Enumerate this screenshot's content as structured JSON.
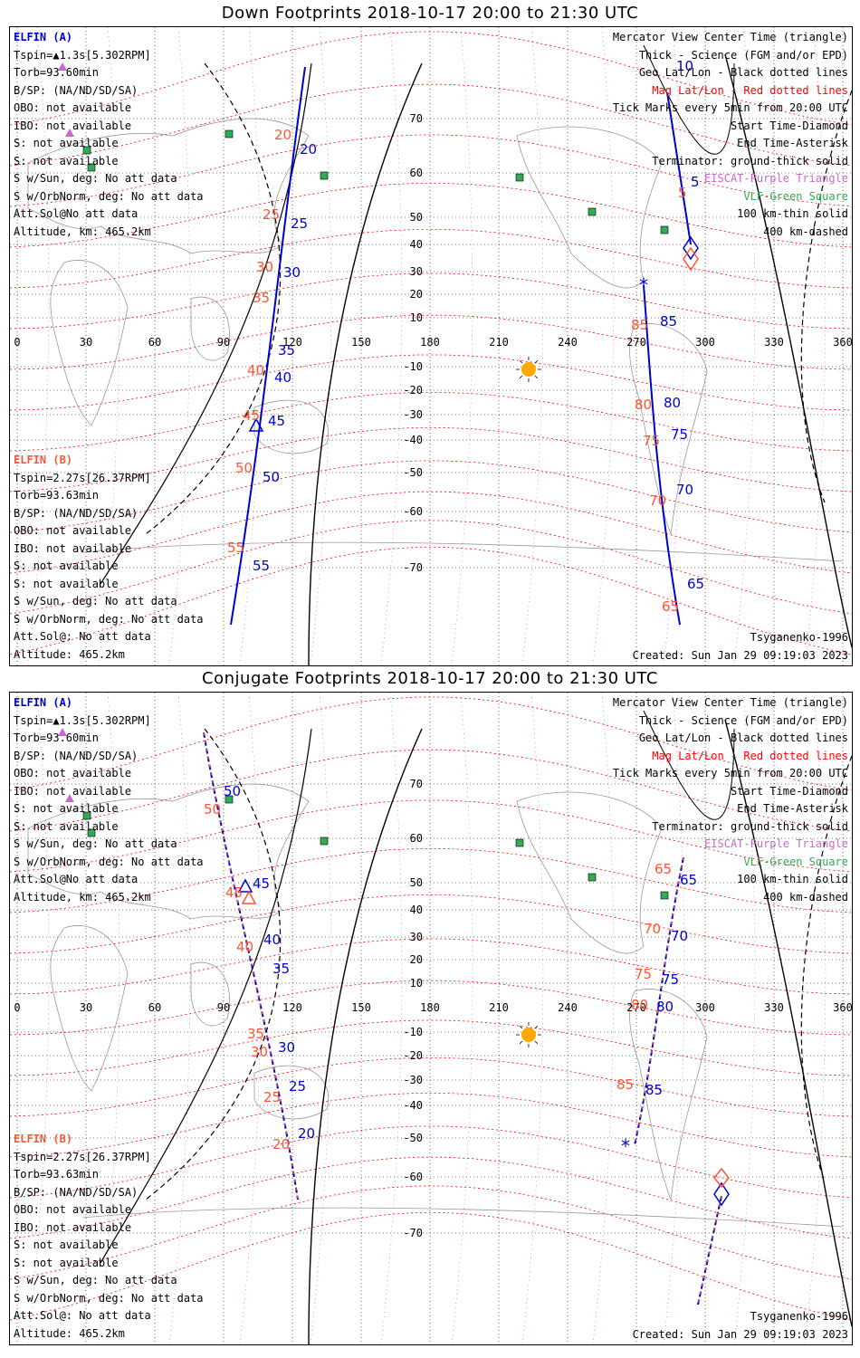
{
  "panels": [
    {
      "title": "Down Footprints 2018-10-17 20:00 to 21:30 UTC",
      "left_a": [
        {
          "text": "ELFIN (A)",
          "color": "blue"
        },
        {
          "text": "Tspin=▲1.3s[5.302RPM]",
          "color": ""
        },
        {
          "text": "Torb=93.60min",
          "color": ""
        },
        {
          "text": "B/SP: (NA/ND/SD/SA)",
          "color": ""
        },
        {
          "text": "OBO: not available",
          "color": ""
        },
        {
          "text": "IBO: not available",
          "color": ""
        },
        {
          "text": "S: not available",
          "color": ""
        },
        {
          "text": "S: not available",
          "color": ""
        },
        {
          "text": "S w/Sun, deg: No att data",
          "color": ""
        },
        {
          "text": "S w/OrbNorm, deg: No att data",
          "color": ""
        },
        {
          "text": "Att.Sol@No att data",
          "color": ""
        },
        {
          "text": "Altitude, km: 465.2km",
          "color": ""
        }
      ],
      "left_b": [
        {
          "text": "ELFIN (B)",
          "color": "orange"
        },
        {
          "text": "Tspin=2.27s[26.37RPM]",
          "color": ""
        },
        {
          "text": "Torb=93.63min",
          "color": ""
        },
        {
          "text": "B/SP: (NA/ND/SD/SA)",
          "color": ""
        },
        {
          "text": "OBO: not available",
          "color": ""
        },
        {
          "text": "IBO: not available",
          "color": ""
        },
        {
          "text": "S: not available",
          "color": ""
        },
        {
          "text": "S: not available",
          "color": ""
        },
        {
          "text": "S w/Sun, deg: No att data",
          "color": ""
        },
        {
          "text": "S w/OrbNorm, deg: No att data",
          "color": ""
        },
        {
          "text": "Att.Sol@: No att data",
          "color": ""
        },
        {
          "text": "Altitude: 465.2km",
          "color": ""
        }
      ],
      "legend": [
        {
          "text": "Mercator View Center Time (triangle)",
          "color": ""
        },
        {
          "text": "Thick - Science (FGM and/or EPD)",
          "color": ""
        },
        {
          "text": "Geo Lat/Lon - Black dotted lines",
          "color": ""
        },
        {
          "text": "Mag Lat/Lon - Red dotted lines",
          "color": "red"
        },
        {
          "text": "Tick Marks every 5min from 20:00 UTC",
          "color": ""
        },
        {
          "text": "Start Time-Diamond",
          "color": ""
        },
        {
          "text": "End Time-Asterisk",
          "color": ""
        },
        {
          "text": "Terminator: ground-thick solid",
          "color": ""
        },
        {
          "text": "EISCAT-Purple Triangle",
          "color": "purple"
        },
        {
          "text": "VLF-Green Square",
          "color": "green"
        },
        {
          "text": "100 km-thin solid",
          "color": ""
        },
        {
          "text": "400 km-dashed",
          "color": ""
        }
      ],
      "footer_left": "",
      "footer_right": [
        "Tsyganenko-1996",
        "Created: Sun Jan 29 09:19:03 2023"
      ],
      "lon_ticks": [
        "0",
        "30",
        "60",
        "90",
        "120",
        "150",
        "180",
        "210",
        "240",
        "270",
        "300",
        "330",
        "360"
      ],
      "lat_ticks": [
        "70",
        "60",
        "50",
        "40",
        "30",
        "20",
        "10",
        "-10",
        "-20",
        "-30",
        "-40",
        "-50",
        "-60",
        "-70"
      ],
      "track_labels_west_a": [
        "20",
        "25",
        "30",
        "35",
        "40",
        "45",
        "50",
        "55"
      ],
      "track_labels_west_b": [
        "20",
        "25",
        "30",
        "35",
        "40",
        "45",
        "50",
        "55"
      ],
      "track_labels_east_a": [
        "10",
        "5",
        "85",
        "80",
        "75",
        "70",
        "65"
      ],
      "track_labels_east_b": [
        "5",
        "85",
        "80",
        "75",
        "70",
        "65"
      ]
    },
    {
      "title": "Conjugate Footprints 2018-10-17 20:00 to 21:30 UTC",
      "left_a": [
        {
          "text": "ELFIN (A)",
          "color": "blue"
        },
        {
          "text": "Tspin=▲1.3s[5.302RPM]",
          "color": ""
        },
        {
          "text": "Torb=93.60min",
          "color": ""
        },
        {
          "text": "B/SP: (NA/ND/SD/SA)",
          "color": ""
        },
        {
          "text": "OBO: not available",
          "color": ""
        },
        {
          "text": "IBO: not available",
          "color": ""
        },
        {
          "text": "S: not available",
          "color": ""
        },
        {
          "text": "S: not available",
          "color": ""
        },
        {
          "text": "S w/Sun, deg: No att data",
          "color": ""
        },
        {
          "text": "S w/OrbNorm, deg: No att data",
          "color": ""
        },
        {
          "text": "Att.Sol@No att data",
          "color": ""
        },
        {
          "text": "Altitude, km: 465.2km",
          "color": ""
        }
      ],
      "left_b": [
        {
          "text": "ELFIN (B)",
          "color": "orange"
        },
        {
          "text": "Tspin=2.27s[26.37RPM]",
          "color": ""
        },
        {
          "text": "Torb=93.63min",
          "color": ""
        },
        {
          "text": "B/SP: (NA/ND/SD/SA)",
          "color": ""
        },
        {
          "text": "OBO: not available",
          "color": ""
        },
        {
          "text": "IBO: not available",
          "color": ""
        },
        {
          "text": "S: not available",
          "color": ""
        },
        {
          "text": "S: not available",
          "color": ""
        },
        {
          "text": "S w/Sun, deg: No att data",
          "color": ""
        },
        {
          "text": "S w/OrbNorm, deg: No att data",
          "color": ""
        },
        {
          "text": "Att.Sol@: No att data",
          "color": ""
        },
        {
          "text": "Altitude: 465.2km",
          "color": ""
        }
      ],
      "legend": [
        {
          "text": "Mercator View Center Time (triangle)",
          "color": ""
        },
        {
          "text": "Thick - Science (FGM and/or EPD)",
          "color": ""
        },
        {
          "text": "Geo Lat/Lon - Black dotted lines",
          "color": ""
        },
        {
          "text": "Mag Lat/Lon - Red dotted lines",
          "color": "red"
        },
        {
          "text": "Tick Marks every 5min from 20:00 UTC",
          "color": ""
        },
        {
          "text": "Start Time-Diamond",
          "color": ""
        },
        {
          "text": "End Time-Asterisk",
          "color": ""
        },
        {
          "text": "Terminator: ground-thick solid",
          "color": ""
        },
        {
          "text": "EISCAT-Purple Triangle",
          "color": "purple"
        },
        {
          "text": "VLF-Green Square",
          "color": "green"
        },
        {
          "text": "100 km-thin solid",
          "color": ""
        },
        {
          "text": "400 km-dashed",
          "color": ""
        }
      ],
      "footer_left": "",
      "footer_right": [
        "Tsyganenko-1996",
        "Created: Sun Jan 29 09:19:03 2023"
      ],
      "lon_ticks": [
        "0",
        "30",
        "60",
        "90",
        "120",
        "150",
        "180",
        "210",
        "240",
        "270",
        "300",
        "330",
        "360"
      ],
      "lat_ticks": [
        "70",
        "60",
        "50",
        "40",
        "30",
        "20",
        "10",
        "-10",
        "-20",
        "-30",
        "-40",
        "-50",
        "-60",
        "-70"
      ],
      "track_labels_west_a": [
        "50",
        "45",
        "40",
        "35",
        "30",
        "25",
        "20"
      ],
      "track_labels_west_b": [
        "50",
        "45",
        "40",
        "35",
        "30",
        "25",
        "20"
      ],
      "track_labels_east_a": [
        "65",
        "70",
        "75",
        "80",
        "85"
      ],
      "track_labels_east_b": [
        "65",
        "70",
        "75",
        "80",
        "85"
      ]
    }
  ],
  "colors": {
    "elfin_a": "#0000cc",
    "elfin_b": "#ff5533",
    "mag_grid": "#ff0000",
    "eiscat": "#cc66cc",
    "vlf": "#33aa55",
    "sun": "#ffaa00",
    "coast": "#999999"
  }
}
